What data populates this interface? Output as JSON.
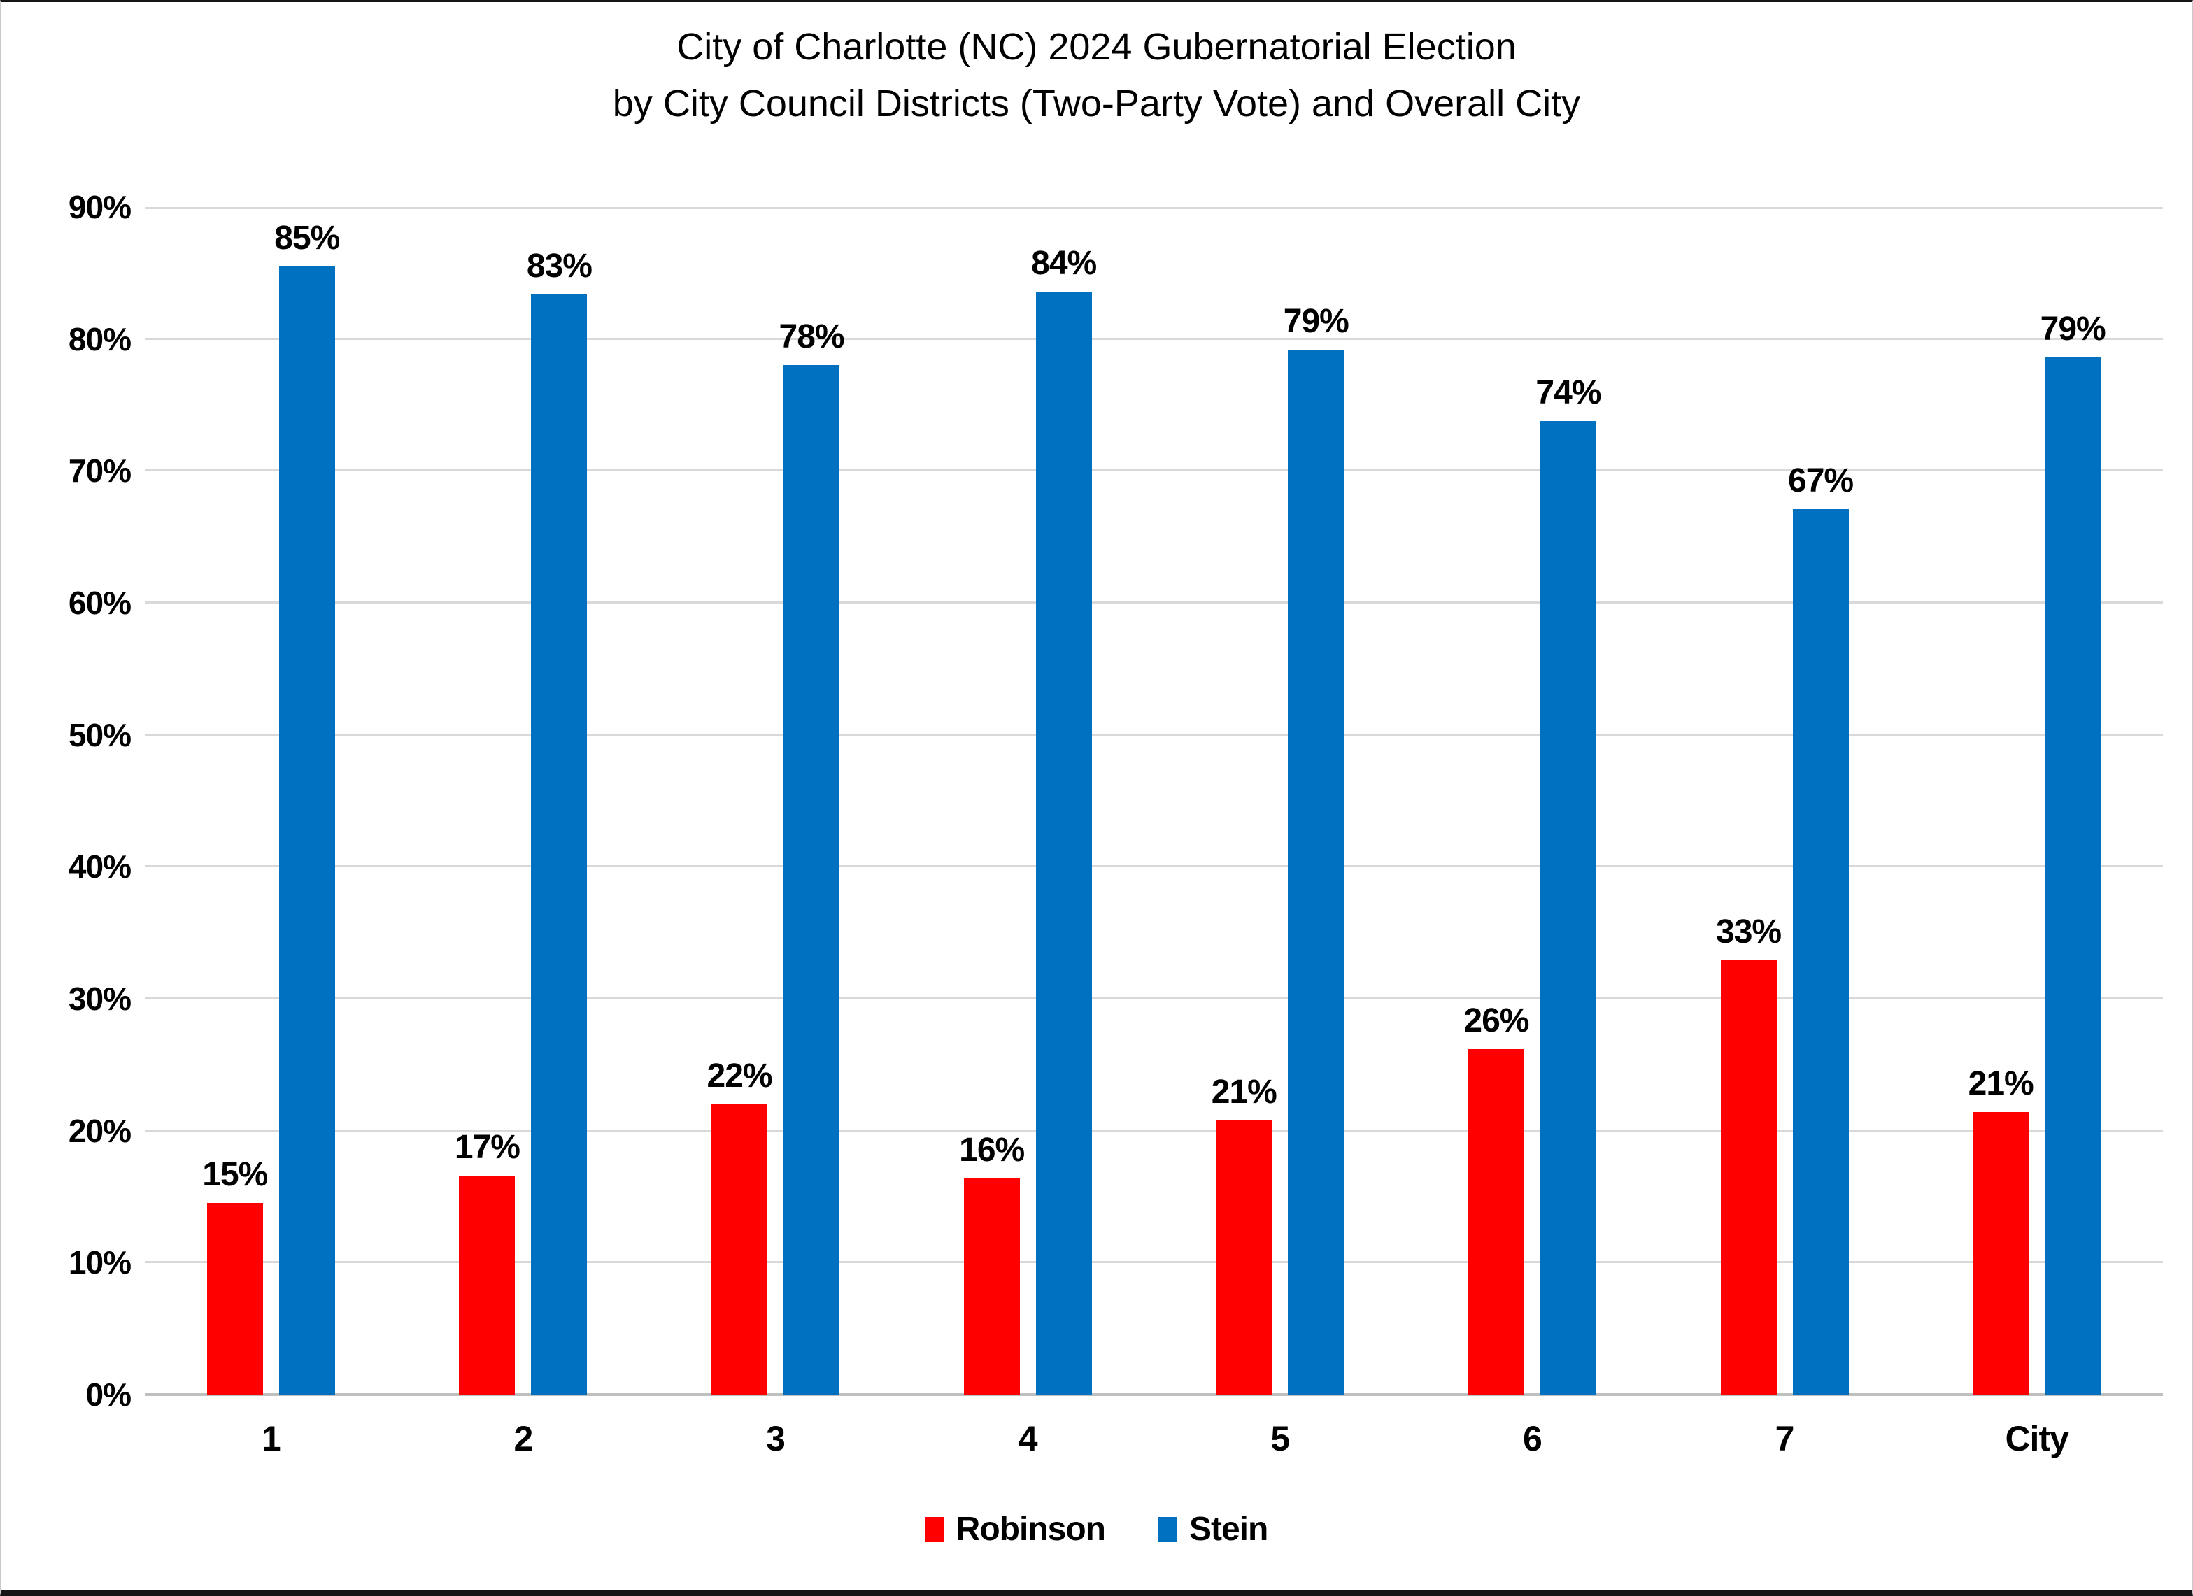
{
  "title": {
    "line1": "City of Charlotte (NC) 2024 Gubernatorial Election",
    "line2": "by City Council Districts (Two-Party Vote) and Overall City"
  },
  "chart_data": {
    "type": "bar",
    "categories": [
      "1",
      "2",
      "3",
      "4",
      "5",
      "6",
      "7",
      "City"
    ],
    "series": [
      {
        "name": "Robinson",
        "color": "#FF0000",
        "values": [
          14.5,
          16.6,
          22.0,
          16.4,
          20.8,
          26.2,
          32.9,
          21.4
        ],
        "labels": [
          "15%",
          "17%",
          "22%",
          "16%",
          "21%",
          "26%",
          "33%",
          "21%"
        ]
      },
      {
        "name": "Stein",
        "color": "#0070C0",
        "values": [
          85.5,
          83.4,
          78.0,
          83.6,
          79.2,
          73.8,
          67.1,
          78.6
        ],
        "labels": [
          "85%",
          "83%",
          "78%",
          "84%",
          "79%",
          "74%",
          "67%",
          "79%"
        ]
      }
    ],
    "y_axis": {
      "min": 0,
      "max": 90,
      "tick_step": 10,
      "ticks": [
        "0%",
        "10%",
        "20%",
        "30%",
        "40%",
        "50%",
        "60%",
        "70%",
        "80%",
        "90%"
      ],
      "grid": true
    },
    "legend": {
      "position": "bottom",
      "entries": [
        "Robinson",
        "Stein"
      ]
    }
  },
  "colors": {
    "robinson": "#FF0000",
    "stein": "#0070C0",
    "gridline": "#D9D9D9",
    "axis_line": "#BFBFBF",
    "text": "#000000",
    "background": "#FFFFFF"
  }
}
